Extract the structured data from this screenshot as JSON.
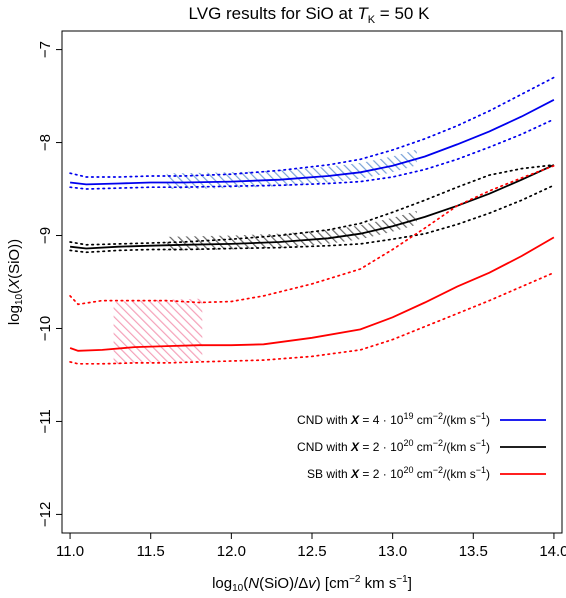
{
  "chart_data": {
    "type": "line",
    "title": {
      "prefix": "LVG results for SiO at ",
      "var": "T",
      "sub": "K",
      "suffix": " = 50 K"
    },
    "xlabel": {
      "pre": "log",
      "sub": "10",
      "open": "(",
      "var": "N",
      "mid": "(SiO)/Δ",
      "var2": "v",
      "close": ") [cm",
      "sup1": "−2",
      "post": " km s",
      "sup2": "−1",
      "end": "]"
    },
    "ylabel": {
      "pre": "log",
      "sub": "10",
      "open": "(",
      "var": "X",
      "post": "(SiO))"
    },
    "xlim": [
      10.95,
      14.05
    ],
    "ylim": [
      -12.2,
      -6.8
    ],
    "xticks": [
      "11.0",
      "11.5",
      "12.0",
      "12.5",
      "13.0",
      "13.5",
      "14.0"
    ],
    "yticks": [
      "−7",
      "−8",
      "−9",
      "−10",
      "−11",
      "−12"
    ],
    "grid": false,
    "legend_position": "bottom-right",
    "series": [
      {
        "name": "CND with X = 4·10^19 cm^−2/(km s^−1)",
        "legend": {
          "pre": "CND with ",
          "X": "X",
          "eq": " = 4 · 10",
          "exp": "19",
          "unit": " cm",
          "unitexp": "−2",
          "tail": "/(km s",
          "tailexp": "−1",
          "end": ")"
        },
        "color": "#0000ee",
        "shade_color": "#7aa2d8",
        "x": [
          11.0,
          11.1,
          11.3,
          11.5,
          11.7,
          12.0,
          12.3,
          12.6,
          12.8,
          13.0,
          13.2,
          13.4,
          13.6,
          13.8,
          14.0
        ],
        "y": [
          -8.43,
          -8.45,
          -8.44,
          -8.43,
          -8.43,
          -8.42,
          -8.4,
          -8.36,
          -8.32,
          -8.25,
          -8.15,
          -8.02,
          -7.88,
          -7.72,
          -7.54
        ],
        "upper": [
          -8.33,
          -8.37,
          -8.37,
          -8.36,
          -8.36,
          -8.34,
          -8.3,
          -8.24,
          -8.18,
          -8.08,
          -7.96,
          -7.82,
          -7.66,
          -7.48,
          -7.3
        ],
        "lower": [
          -8.48,
          -8.5,
          -8.49,
          -8.48,
          -8.48,
          -8.47,
          -8.46,
          -8.44,
          -8.42,
          -8.37,
          -8.29,
          -8.18,
          -8.05,
          -7.91,
          -7.75
        ],
        "shade": {
          "x_from": 11.6,
          "x_to": 13.15,
          "lower": -0.07,
          "upper": 0.1
        }
      },
      {
        "name": "CND with X = 2·10^20 cm^−2/(km s^−1)",
        "legend": {
          "pre": "CND with ",
          "X": "X",
          "eq": " = 2 · 10",
          "exp": "20",
          "unit": " cm",
          "unitexp": "−2",
          "tail": "/(km s",
          "tailexp": "−1",
          "end": ")"
        },
        "color": "#000000",
        "shade_color": "#666666",
        "x": [
          11.0,
          11.1,
          11.3,
          11.5,
          11.7,
          12.0,
          12.3,
          12.6,
          12.8,
          13.0,
          13.2,
          13.4,
          13.6,
          13.8,
          14.0
        ],
        "y": [
          -9.12,
          -9.14,
          -9.12,
          -9.11,
          -9.1,
          -9.09,
          -9.07,
          -9.03,
          -8.98,
          -8.9,
          -8.8,
          -8.68,
          -8.55,
          -8.4,
          -8.24
        ],
        "upper": [
          -9.07,
          -9.1,
          -9.09,
          -9.08,
          -9.07,
          -9.04,
          -9.0,
          -8.94,
          -8.87,
          -8.75,
          -8.62,
          -8.48,
          -8.35,
          -8.28,
          -8.24
        ],
        "lower": [
          -9.16,
          -9.18,
          -9.16,
          -9.15,
          -9.15,
          -9.14,
          -9.13,
          -9.11,
          -9.09,
          -9.04,
          -8.98,
          -8.88,
          -8.76,
          -8.62,
          -8.46
        ],
        "shade": {
          "x_from": 11.6,
          "x_to": 13.15,
          "lower": -0.06,
          "upper": 0.09
        }
      },
      {
        "name": "SB with X = 2·10^20 cm^−2/(km s^−1)",
        "legend": {
          "pre": "SB with ",
          "X": "X",
          "eq": " = 2 · 10",
          "exp": "20",
          "unit": " cm",
          "unitexp": "−2",
          "tail": "/(km s",
          "tailexp": "−1",
          "end": ")"
        },
        "color": "#ff0000",
        "shade_color": "#f4a0b8",
        "x": [
          11.0,
          11.05,
          11.2,
          11.4,
          11.6,
          11.8,
          12.0,
          12.2,
          12.5,
          12.8,
          13.0,
          13.2,
          13.4,
          13.6,
          13.8,
          14.0
        ],
        "y": [
          -10.21,
          -10.24,
          -10.23,
          -10.2,
          -10.19,
          -10.18,
          -10.18,
          -10.17,
          -10.1,
          -10.01,
          -9.88,
          -9.72,
          -9.55,
          -9.4,
          -9.22,
          -9.02
        ],
        "upper": [
          -9.65,
          -9.74,
          -9.7,
          -9.7,
          -9.7,
          -9.72,
          -9.71,
          -9.65,
          -9.52,
          -9.36,
          -9.15,
          -8.92,
          -8.68,
          -8.52,
          -8.38,
          -8.25
        ],
        "lower": [
          -10.36,
          -10.38,
          -10.38,
          -10.37,
          -10.37,
          -10.36,
          -10.35,
          -10.34,
          -10.3,
          -10.23,
          -10.12,
          -9.98,
          -9.84,
          -9.7,
          -9.55,
          -9.4
        ],
        "shade": {
          "x_from": 11.27,
          "x_to": 11.82,
          "lower": -0.17,
          "upper": 0.5
        }
      }
    ]
  }
}
